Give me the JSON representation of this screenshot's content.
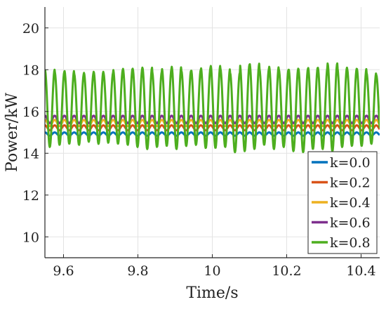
{
  "chart_data": {
    "type": "line",
    "title": "",
    "xlabel": "Time/s",
    "ylabel": "Power/kW",
    "xlim": [
      9.55,
      10.45
    ],
    "ylim": [
      9,
      21
    ],
    "xticks": [
      9.6,
      9.8,
      10,
      10.2,
      10.4
    ],
    "xtick_labels": [
      "9.6",
      "9.8",
      "10",
      "10.2",
      "10.4"
    ],
    "yticks": [
      10,
      12,
      14,
      16,
      18,
      20
    ],
    "ytick_labels": [
      "10",
      "12",
      "14",
      "16",
      "18",
      "20"
    ],
    "grid": true,
    "legend_position": "bottom-right",
    "series": [
      {
        "name": "k=0.0",
        "color": "#0072BD",
        "mean": 14.92,
        "amplitude": 0.08,
        "period": 0.0262
      },
      {
        "name": "k=0.2",
        "color": "#D95319",
        "mean": 15.22,
        "amplitude": 0.12,
        "period": 0.0262
      },
      {
        "name": "k=0.4",
        "color": "#EDB120",
        "mean": 15.45,
        "amplitude": 0.15,
        "period": 0.0262
      },
      {
        "name": "k=0.6",
        "color": "#7E2F8E",
        "mean": 15.62,
        "amplitude": 0.18,
        "period": 0.0262
      },
      {
        "name": "k=0.8",
        "color": "#4DAE1F",
        "mean": 16.1,
        "amplitude": 1.75,
        "period": 0.0262,
        "peaks": [
          18.0,
          17.9,
          17.95,
          17.8,
          17.85,
          17.9,
          17.85,
          18.0,
          18.05,
          18.05,
          18.1,
          17.9,
          18.05,
          18.15,
          17.95,
          18.0,
          18.1,
          18.2,
          18.05,
          17.85,
          18.25,
          18.3,
          18.05,
          18.15,
          18.0,
          18.05,
          18.05,
          18.1,
          18.1,
          18.3,
          18.1,
          18.05,
          18.05,
          17.85,
          17.75
        ],
        "troughs": [
          14.3,
          14.4,
          14.45,
          14.4,
          14.55,
          14.45,
          14.5,
          14.45,
          14.4,
          14.3,
          14.2,
          14.3,
          14.35,
          14.2,
          14.35,
          14.4,
          14.25,
          14.25,
          14.3,
          14.05,
          14.1,
          14.2,
          14.4,
          14.2,
          14.3,
          14.1,
          14.05,
          14.2,
          14.2,
          14.1,
          14.3,
          14.35,
          14.35,
          14.45,
          14.55
        ]
      }
    ]
  }
}
